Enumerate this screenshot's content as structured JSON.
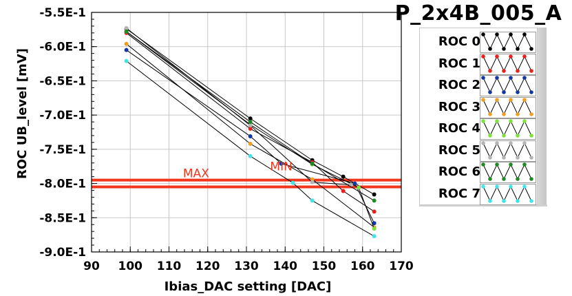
{
  "title": "P_2x4B_005_A",
  "legend": [
    {
      "label": "ROC 0",
      "color": "#000000"
    },
    {
      "label": "ROC 1",
      "color": "#e8221a"
    },
    {
      "label": "ROC 2",
      "color": "#1237a5"
    },
    {
      "label": "ROC 3",
      "color": "#f0a020"
    },
    {
      "label": "ROC 4",
      "color": "#7ee23a"
    },
    {
      "label": "ROC 5",
      "color": "#b4b4b4"
    },
    {
      "label": "ROC 6",
      "color": "#1f8a22"
    },
    {
      "label": "ROC 7",
      "color": "#3fe6e8"
    }
  ],
  "chart_data": {
    "type": "line",
    "xlabel": "Ibias_DAC setting [DAC]",
    "ylabel": "ROC UB_level [mV]",
    "xlim": [
      90,
      170
    ],
    "ylim": [
      -0.9,
      -0.55
    ],
    "xticks": [
      "90",
      "100",
      "110",
      "120",
      "130",
      "140",
      "150",
      "160",
      "170"
    ],
    "yticks": [
      "-5.5E-1",
      "-6.0E-1",
      "-6.5E-1",
      "-7.0E-1",
      "-7.5E-1",
      "-8.0E-1",
      "-8.5E-1",
      "-9.0E-1"
    ],
    "grid": true,
    "line_color": "#000000",
    "limit_lines": {
      "color": "#f2361c",
      "values": [
        -0.795,
        -0.805
      ]
    },
    "annotations": [
      {
        "text": "MAX",
        "x": 117,
        "y": -0.791
      },
      {
        "text": "MIN",
        "x": 139,
        "y": -0.781
      }
    ],
    "series": [
      {
        "color": "#000000",
        "x": [
          99,
          131,
          147,
          155,
          163
        ],
        "y": [
          -0.574,
          -0.705,
          -0.766,
          -0.79,
          -0.816
        ]
      },
      {
        "color": "#e8221a",
        "x": [
          99,
          131,
          147,
          155,
          163
        ],
        "y": [
          -0.58,
          -0.72,
          -0.769,
          -0.811,
          -0.841
        ]
      },
      {
        "color": "#1237a5",
        "x": [
          99,
          131,
          139,
          158,
          163
        ],
        "y": [
          -0.605,
          -0.731,
          -0.771,
          -0.8,
          -0.858
        ]
      },
      {
        "color": "#f0a020",
        "x": [
          99,
          131,
          147,
          163
        ],
        "y": [
          -0.596,
          -0.742,
          -0.794,
          -0.864
        ]
      },
      {
        "color": "#7ee23a",
        "x": [
          99,
          131,
          147,
          159,
          163
        ],
        "y": [
          -0.578,
          -0.714,
          -0.772,
          -0.806,
          -0.866
        ]
      },
      {
        "color": "#b4b4b4",
        "x": [
          99,
          131,
          147,
          157
        ],
        "y": [
          -0.573,
          -0.715,
          -0.798,
          -0.802
        ]
      },
      {
        "color": "#1f8a22",
        "x": [
          99,
          131,
          147,
          163
        ],
        "y": [
          -0.578,
          -0.71,
          -0.771,
          -0.825
        ]
      },
      {
        "color": "#3fe6e8",
        "x": [
          99,
          131,
          142,
          147,
          163
        ],
        "y": [
          -0.621,
          -0.76,
          -0.799,
          -0.825,
          -0.877
        ]
      }
    ]
  }
}
